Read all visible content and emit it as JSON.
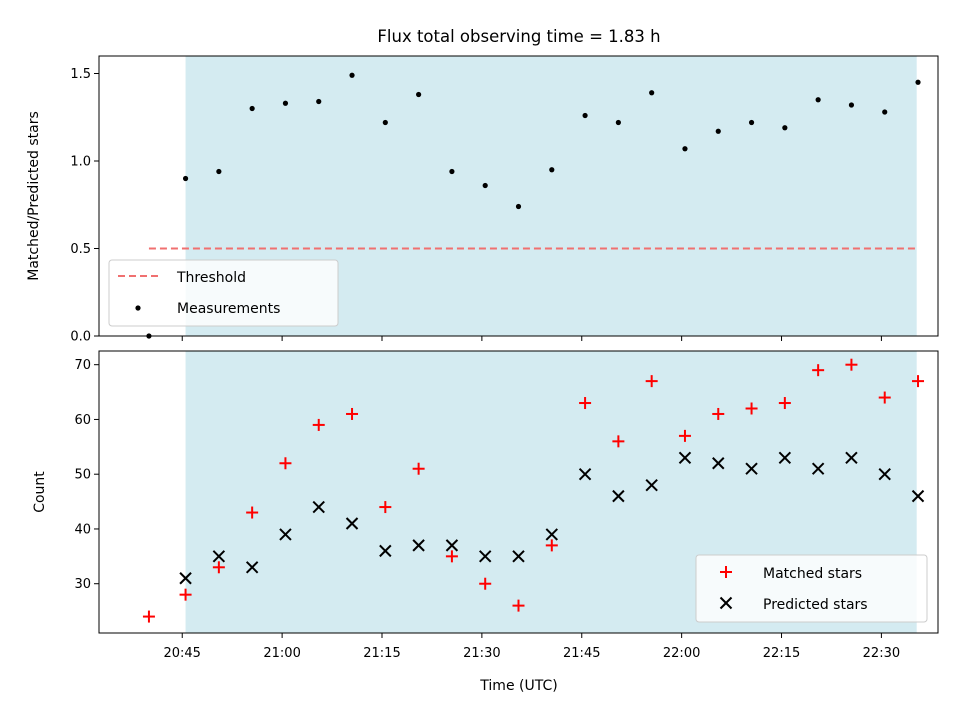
{
  "chart_data": {
    "type": "scatter",
    "title": "Flux total observing time = 1.83 h",
    "xlabel": "Time (UTC)",
    "x_ticks": [
      "20:45",
      "21:00",
      "21:15",
      "21:30",
      "21:45",
      "22:00",
      "22:15",
      "22:30"
    ],
    "x_tick_minutes": [
      45,
      60,
      75,
      90,
      105,
      120,
      135,
      150
    ],
    "x_range_minutes": [
      32.5,
      158.5
    ],
    "observing_window_minutes": [
      45.5,
      155.3
    ],
    "shade_color": "#d4ebf1",
    "times": [
      "20:40",
      "20:45",
      "20:50",
      "20:55",
      "21:00",
      "21:05",
      "21:10",
      "21:15",
      "21:20",
      "21:25",
      "21:30",
      "21:35",
      "21:40",
      "21:45",
      "21:50",
      "21:55",
      "22:00",
      "22:05",
      "22:10",
      "22:15",
      "22:20",
      "22:25",
      "22:30",
      "22:35"
    ],
    "time_minutes": [
      40,
      45.5,
      50.5,
      55.5,
      60.5,
      65.5,
      70.5,
      75.5,
      80.5,
      85.5,
      90.5,
      95.5,
      100.5,
      105.5,
      110.5,
      115.5,
      120.5,
      125.5,
      130.5,
      135.5,
      140.5,
      145.5,
      150.5,
      155.5
    ],
    "top": {
      "ylabel": "Matched/Predicted stars",
      "ylim": [
        0,
        1.6
      ],
      "y_ticks": [
        "0.0",
        "0.5",
        "1.0",
        "1.5"
      ],
      "y_tick_values": [
        0,
        0.5,
        1.0,
        1.5
      ],
      "threshold": {
        "name": "Threshold",
        "value": 0.5,
        "color": "#f07070"
      },
      "measurements": {
        "name": "Measurements",
        "color": "#000000",
        "values": [
          0.0,
          0.9,
          0.94,
          1.3,
          1.33,
          1.34,
          1.49,
          1.22,
          1.38,
          0.94,
          0.86,
          0.74,
          0.95,
          1.26,
          1.22,
          1.39,
          1.07,
          1.17,
          1.22,
          1.19,
          1.35,
          1.32,
          1.28,
          1.45
        ]
      },
      "legend_position": "lower-left"
    },
    "bottom": {
      "ylabel": "Count",
      "ylim": [
        21,
        72.5
      ],
      "y_ticks": [
        "30",
        "40",
        "50",
        "60",
        "70"
      ],
      "y_tick_values": [
        30,
        40,
        50,
        60,
        70
      ],
      "series": [
        {
          "name": "Matched stars",
          "marker": "plus",
          "color": "#ff0000",
          "values": [
            24,
            28,
            33,
            43,
            52,
            59,
            61,
            44,
            51,
            35,
            30,
            26,
            37,
            63,
            56,
            67,
            57,
            61,
            62,
            63,
            69,
            70,
            64,
            67
          ]
        },
        {
          "name": "Predicted stars",
          "marker": "x",
          "color": "#000000",
          "values": [
            null,
            31,
            35,
            33,
            39,
            44,
            41,
            36,
            37,
            37,
            35,
            35,
            39,
            50,
            46,
            48,
            53,
            52,
            51,
            53,
            51,
            53,
            50,
            46
          ]
        }
      ],
      "legend_position": "lower-right"
    }
  }
}
